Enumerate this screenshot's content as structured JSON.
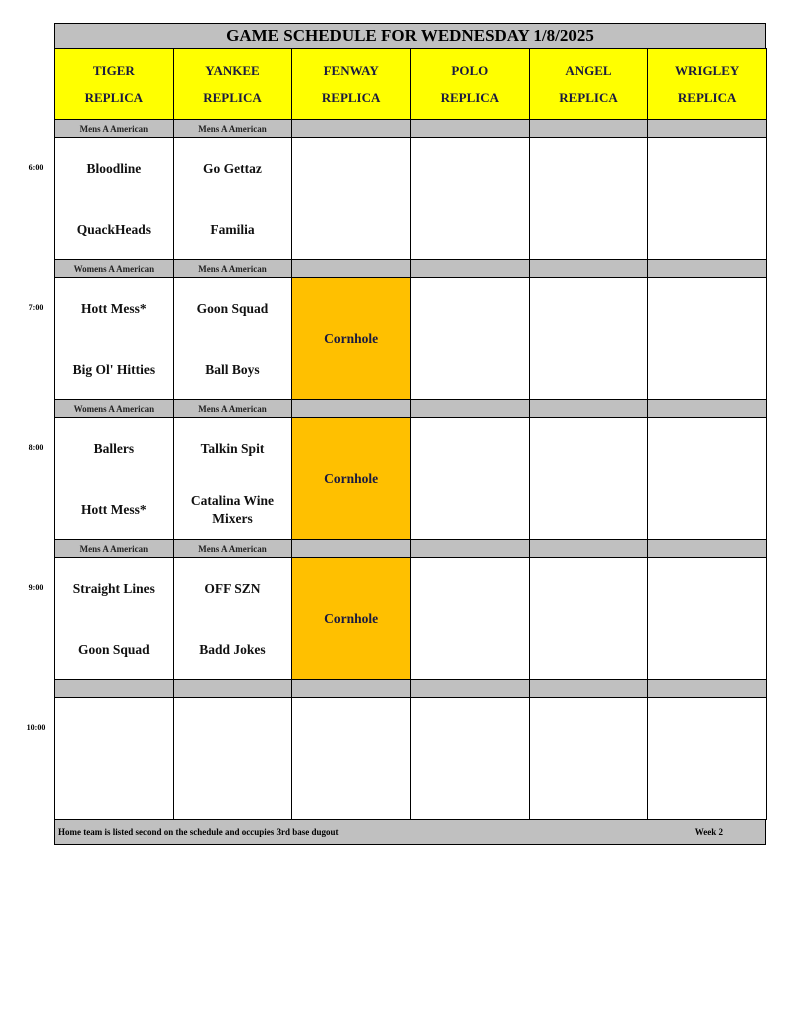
{
  "title": "GAME SCHEDULE FOR WEDNESDAY 1/8/2025",
  "fields": [
    {
      "name": "TIGER",
      "sub": "REPLICA"
    },
    {
      "name": "YANKEE",
      "sub": "REPLICA"
    },
    {
      "name": "FENWAY",
      "sub": "REPLICA"
    },
    {
      "name": "POLO",
      "sub": "REPLICA"
    },
    {
      "name": "ANGEL",
      "sub": "REPLICA"
    },
    {
      "name": "WRIGLEY",
      "sub": "REPLICA"
    }
  ],
  "slots": [
    {
      "time": "6:00",
      "divisions": [
        "Mens A American",
        "Mens A American",
        "",
        "",
        "",
        ""
      ],
      "games": [
        {
          "top": "Bloodline",
          "bottom": "QuackHeads"
        },
        {
          "top": "Go Gettaz",
          "bottom": "Familia"
        },
        {},
        {},
        {},
        {}
      ]
    },
    {
      "time": "7:00",
      "divisions": [
        "Womens A American",
        "Mens A American",
        "",
        "",
        "",
        ""
      ],
      "games": [
        {
          "top": "Hott Mess*",
          "bottom": "Big Ol' Hitties"
        },
        {
          "top": "Goon Squad",
          "bottom": "Ball Boys"
        },
        {
          "event": "Cornhole"
        },
        {},
        {},
        {}
      ]
    },
    {
      "time": "8:00",
      "divisions": [
        "Womens A American",
        "Mens A American",
        "",
        "",
        "",
        ""
      ],
      "games": [
        {
          "top": "Ballers",
          "bottom": "Hott Mess*"
        },
        {
          "top": "Talkin Spit",
          "bottom": "Catalina Wine Mixers"
        },
        {
          "event": "Cornhole"
        },
        {},
        {},
        {}
      ]
    },
    {
      "time": "9:00",
      "divisions": [
        "Mens A American",
        "Mens A American",
        "",
        "",
        "",
        ""
      ],
      "games": [
        {
          "top": "Straight Lines",
          "bottom": "Goon Squad"
        },
        {
          "top": "OFF SZN",
          "bottom": "Badd Jokes"
        },
        {
          "event": "Cornhole"
        },
        {},
        {},
        {}
      ]
    },
    {
      "time": "10:00",
      "divisions": [
        "",
        "",
        "",
        "",
        "",
        ""
      ],
      "games": [
        {},
        {},
        {},
        {},
        {},
        {}
      ]
    }
  ],
  "footer": {
    "note": "Home team is listed second on the schedule and occupies 3rd base dugout",
    "week": "Week 2"
  },
  "colors": {
    "header": "#ffff00",
    "division": "#c0c0c0",
    "event": "#ffc000"
  }
}
